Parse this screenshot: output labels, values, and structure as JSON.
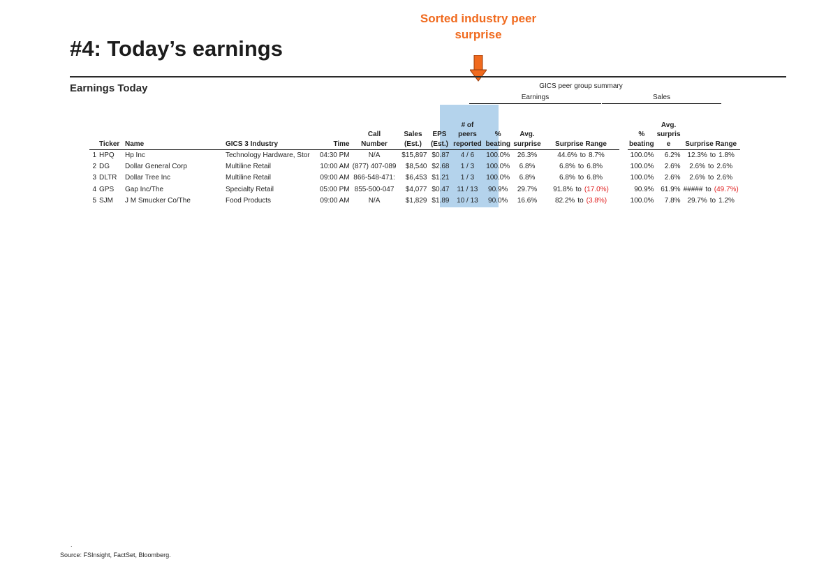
{
  "callout": {
    "line1": "Sorted industry peer",
    "line2": "surprise",
    "color": "#f06a1e"
  },
  "title": "#4: Today’s earnings",
  "section_title": "Earnings Today",
  "group_headers": {
    "summary": "GICS peer group summary",
    "earnings": "Earnings",
    "sales": "Sales"
  },
  "columns": {
    "idx": "",
    "ticker": "Ticker",
    "name": "Name",
    "industry": "GICS 3 Industry",
    "time": "Time",
    "call": [
      "Call",
      "Number"
    ],
    "sales": [
      "Sales",
      "(Est.)"
    ],
    "eps": [
      "EPS",
      "(Est.)"
    ],
    "peers": [
      "# of",
      "peers",
      "reported"
    ],
    "pct_beating": [
      "%",
      "beating"
    ],
    "avg_surprise": [
      "Avg.",
      "surprise"
    ],
    "surprise_range": "Surprise Range",
    "sales_pct_beating": [
      "%",
      "beating"
    ],
    "sales_avg_surprise": [
      "Avg.",
      "surpris",
      "e"
    ],
    "sales_surprise_range": "Surprise Range"
  },
  "rows": [
    {
      "idx": "1",
      "ticker": "HPQ",
      "name": "Hp Inc",
      "industry": "Technology Hardware, Stor",
      "time": "04:30 PM",
      "call": "N/A",
      "sales": "$15,897",
      "eps": "$0.87",
      "peers": "4 / 6",
      "pct_beating": "100.0%",
      "avg_surprise": "26.3%",
      "range_hi": "44.6%",
      "to": "to",
      "range_lo": "8.7%",
      "range_lo_neg": false,
      "s_pct_beating": "100.0%",
      "s_avg_surprise": "6.2%",
      "s_range_hi": "12.3%",
      "s_range_lo": "1.8%",
      "s_range_lo_neg": false
    },
    {
      "idx": "2",
      "ticker": "DG",
      "name": "Dollar General Corp",
      "industry": "Multiline Retail",
      "time": "10:00 AM",
      "call": "(877) 407-089",
      "sales": "$8,540",
      "eps": "$2.68",
      "peers": "1 / 3",
      "pct_beating": "100.0%",
      "avg_surprise": "6.8%",
      "range_hi": "6.8%",
      "to": "to",
      "range_lo": "6.8%",
      "range_lo_neg": false,
      "s_pct_beating": "100.0%",
      "s_avg_surprise": "2.6%",
      "s_range_hi": "2.6%",
      "s_range_lo": "2.6%",
      "s_range_lo_neg": false
    },
    {
      "idx": "3",
      "ticker": "DLTR",
      "name": "Dollar Tree Inc",
      "industry": "Multiline Retail",
      "time": "09:00 AM",
      "call": "866-548-471:",
      "sales": "$6,453",
      "eps": "$1.21",
      "peers": "1 / 3",
      "pct_beating": "100.0%",
      "avg_surprise": "6.8%",
      "range_hi": "6.8%",
      "to": "to",
      "range_lo": "6.8%",
      "range_lo_neg": false,
      "s_pct_beating": "100.0%",
      "s_avg_surprise": "2.6%",
      "s_range_hi": "2.6%",
      "s_range_lo": "2.6%",
      "s_range_lo_neg": false
    },
    {
      "idx": "4",
      "ticker": "GPS",
      "name": "Gap Inc/The",
      "industry": "Specialty Retail",
      "time": "05:00 PM",
      "call": "855-500-047",
      "sales": "$4,077",
      "eps": "$0.47",
      "peers": "11 / 13",
      "pct_beating": "90.9%",
      "avg_surprise": "29.7%",
      "range_hi": "91.8%",
      "to": "to",
      "range_lo": "(17.0%)",
      "range_lo_neg": true,
      "s_pct_beating": "90.9%",
      "s_avg_surprise": "61.9%",
      "s_range_hi": "#####",
      "s_range_lo": "(49.7%)",
      "s_range_lo_neg": true
    },
    {
      "idx": "5",
      "ticker": "SJM",
      "name": "J M Smucker Co/The",
      "industry": "Food Products",
      "time": "09:00 AM",
      "call": "N/A",
      "sales": "$1,829",
      "eps": "$1.89",
      "peers": "10 / 13",
      "pct_beating": "90.0%",
      "avg_surprise": "16.6%",
      "range_hi": "82.2%",
      "to": "to",
      "range_lo": "(3.8%)",
      "range_lo_neg": true,
      "s_pct_beating": "100.0%",
      "s_avg_surprise": "7.8%",
      "s_range_hi": "29.7%",
      "s_range_lo": "1.2%",
      "s_range_lo_neg": false
    }
  ],
  "footer": {
    "dot": ".",
    "source": "Source: FSInsight, FactSet, Bloomberg."
  },
  "colors": {
    "highlight": "#b4d3ec",
    "negative": "#e02020",
    "accent": "#f06a1e"
  }
}
